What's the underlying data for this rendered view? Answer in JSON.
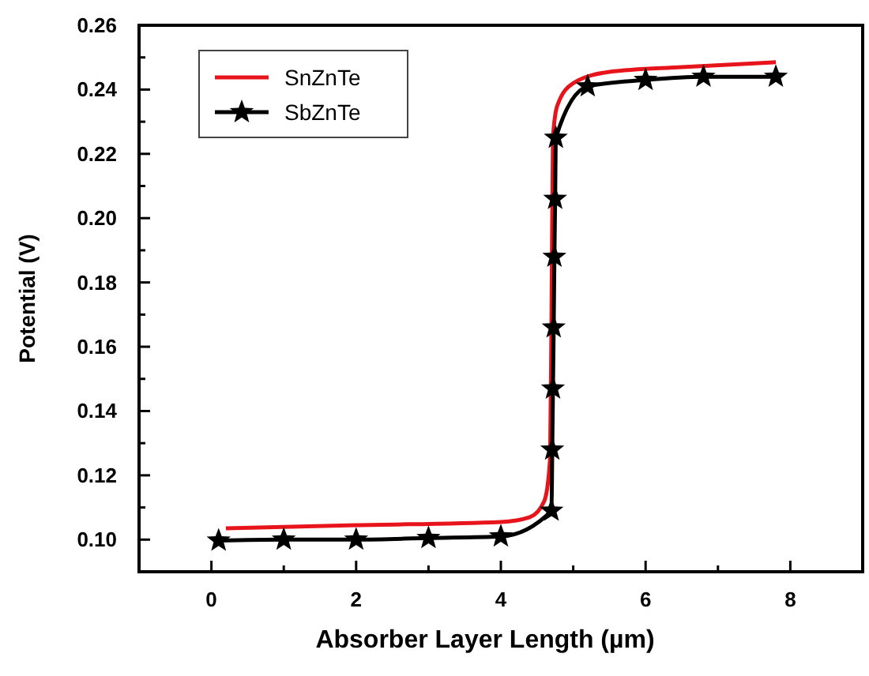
{
  "chart_data": {
    "type": "line",
    "xlabel": "Absorber Layer Length (µm)",
    "ylabel": "Potential (V)",
    "xlim": [
      -1,
      9
    ],
    "ylim": [
      0.09,
      0.26
    ],
    "xticks": [
      0,
      {
        "value": 1,
        "label": null
      },
      2,
      {
        "value": 3,
        "label": null
      },
      4,
      {
        "value": 5,
        "label": null
      },
      6,
      {
        "value": 7,
        "label": null
      },
      8
    ],
    "yticks": [
      {
        "value": 0.1,
        "label": "0.10"
      },
      {
        "value": 0.11,
        "label": null
      },
      0.12,
      {
        "value": 0.13,
        "label": null
      },
      0.14,
      {
        "value": 0.15,
        "label": null
      },
      0.16,
      {
        "value": 0.17,
        "label": null
      },
      0.18,
      {
        "value": 0.19,
        "label": null
      },
      {
        "value": 0.2,
        "label": "0.20"
      },
      {
        "value": 0.21,
        "label": null
      },
      0.22,
      {
        "value": 0.23,
        "label": null
      },
      0.24,
      {
        "value": 0.25,
        "label": null
      },
      0.26
    ],
    "legend": "top left",
    "grid": false,
    "line_style": "solid",
    "series": [
      {
        "name": "SnZnTe",
        "color": "#e8141c",
        "marker": "none",
        "x": [
          0.2,
          2,
          4,
          4.4,
          4.6,
          4.68,
          4.7,
          4.72,
          4.78,
          5,
          5.5,
          6.5,
          7.8
        ],
        "values": [
          0.1035,
          0.1045,
          0.1055,
          0.107,
          0.112,
          0.125,
          0.17,
          0.225,
          0.235,
          0.242,
          0.2455,
          0.247,
          0.2485
        ]
      },
      {
        "name": "SbZnTe",
        "color": "#000000",
        "marker": "star",
        "x": [
          0.1,
          1,
          2,
          3,
          4,
          4.7,
          4.71,
          4.72,
          4.73,
          4.74,
          4.75,
          4.76,
          5.2,
          6,
          6.8,
          7.8
        ],
        "values": [
          0.0997,
          0.1,
          0.1,
          0.1005,
          0.101,
          0.109,
          0.128,
          0.147,
          0.166,
          0.188,
          0.206,
          0.225,
          0.241,
          0.243,
          0.244,
          0.244
        ]
      }
    ]
  }
}
